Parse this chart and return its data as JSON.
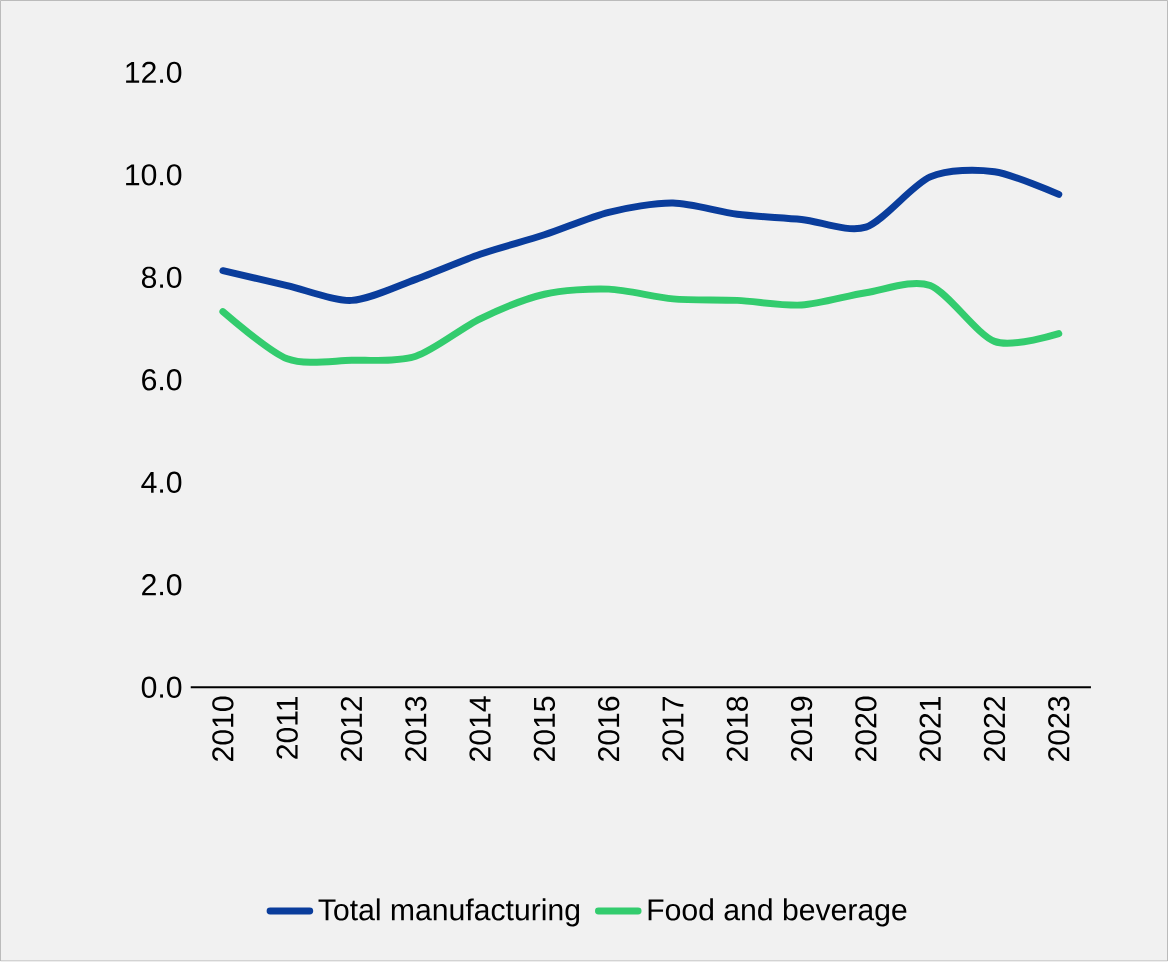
{
  "chart_data": {
    "type": "line",
    "categories": [
      "2010",
      "2011",
      "2012",
      "2013",
      "2014",
      "2015",
      "2016",
      "2017",
      "2018",
      "2019",
      "2020",
      "2021",
      "2022",
      "2023"
    ],
    "series": [
      {
        "name": "Total manufacturing",
        "color": "#0a3d9c",
        "values": [
          8.13,
          7.84,
          7.55,
          7.96,
          8.45,
          8.83,
          9.27,
          9.45,
          9.23,
          9.13,
          8.98,
          9.96,
          10.06,
          9.62
        ]
      },
      {
        "name": "Food and beverage",
        "color": "#33cc6e",
        "values": [
          7.33,
          6.41,
          6.38,
          6.46,
          7.19,
          7.67,
          7.77,
          7.58,
          7.55,
          7.46,
          7.7,
          7.84,
          6.75,
          6.9
        ]
      }
    ],
    "ylim": [
      0,
      12
    ],
    "yticks": [
      {
        "value": 0,
        "label": "0.0"
      },
      {
        "value": 2,
        "label": "2.0"
      },
      {
        "value": 4,
        "label": "4.0"
      },
      {
        "value": 6,
        "label": "6.0"
      },
      {
        "value": 8,
        "label": "8.0"
      },
      {
        "value": 10,
        "label": "10.0"
      },
      {
        "value": 12,
        "label": "12.0"
      }
    ],
    "grid": false,
    "legend": "bottom",
    "marker": "none",
    "line_style": "solid"
  }
}
